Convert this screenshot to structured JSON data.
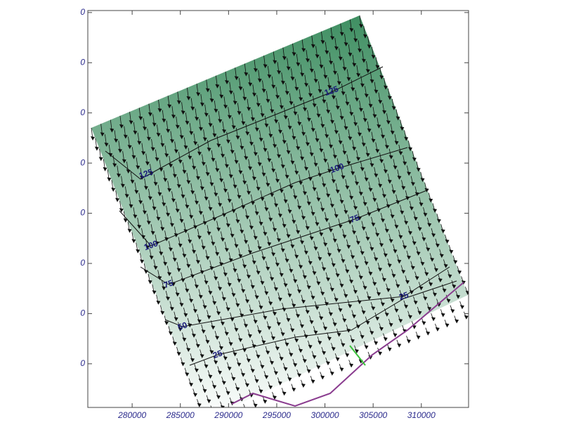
{
  "chart_data": {
    "type": "vector-contour",
    "xlim": [
      275400,
      314900
    ],
    "xticks": [
      280000,
      285000,
      290000,
      295000,
      300000,
      305000,
      310000
    ],
    "ylim": [
      -0.87,
      7.04
    ],
    "yticks": [
      {
        "value": 7,
        "label": "0"
      },
      {
        "value": 6,
        "label": "0"
      },
      {
        "value": 5,
        "label": "0"
      },
      {
        "value": 4,
        "label": "0"
      },
      {
        "value": 3,
        "label": "0"
      },
      {
        "value": 2,
        "label": "0"
      },
      {
        "value": 1,
        "label": "0"
      },
      {
        "value": 0,
        "label": "0"
      }
    ],
    "contour_labels": [
      "125",
      "125",
      "100",
      "100",
      "75",
      "75",
      "25",
      "50",
      "25"
    ],
    "color_top": "#3f8f62",
    "color_bottom": "#ffffff"
  }
}
